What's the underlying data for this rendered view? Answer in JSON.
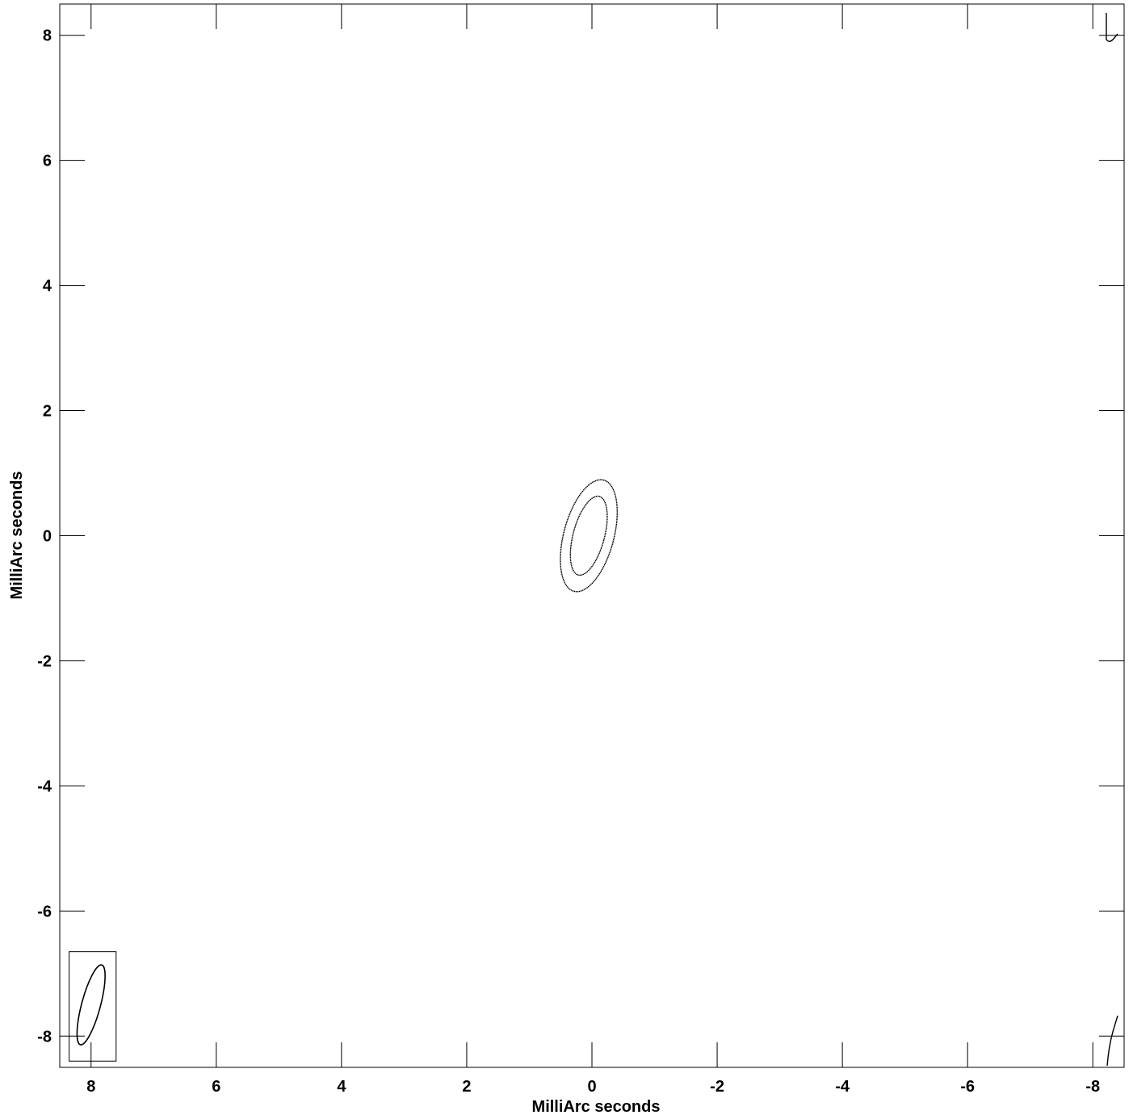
{
  "chart_data": {
    "type": "contour",
    "xlabel": "MilliArc seconds",
    "ylabel": "MilliArc seconds",
    "xlim": [
      8.5,
      -8.5
    ],
    "ylim": [
      -8.5,
      8.5
    ],
    "x_reversed": true,
    "x_ticks": [
      8,
      6,
      4,
      2,
      0,
      -2,
      -4,
      -6,
      -8
    ],
    "y_ticks": [
      8,
      6,
      4,
      2,
      0,
      -2,
      -4,
      -6,
      -8
    ],
    "x_tick_labels": [
      "8",
      "6",
      "4",
      "2",
      "0",
      "-2",
      "-4",
      "-6",
      "-8"
    ],
    "y_tick_labels": [
      "8",
      "6",
      "4",
      "2",
      "0",
      "-2",
      "-4",
      "-6",
      "-8"
    ],
    "grid": false,
    "contours": [
      {
        "level": "outer",
        "center": [
          0.05,
          0.0
        ],
        "semi_major": 0.92,
        "semi_minor": 0.4,
        "position_angle_deg": -15
      },
      {
        "level": "inner",
        "center": [
          0.05,
          0.0
        ],
        "semi_major": 0.65,
        "semi_minor": 0.25,
        "position_angle_deg": -15
      }
    ],
    "beam": {
      "center": [
        8.0,
        -7.5
      ],
      "semi_major": 0.66,
      "semi_minor": 0.15,
      "position_angle_deg": -15,
      "box": {
        "x": [
          8.35,
          7.6
        ],
        "y": [
          -8.4,
          -6.65
        ]
      }
    }
  }
}
